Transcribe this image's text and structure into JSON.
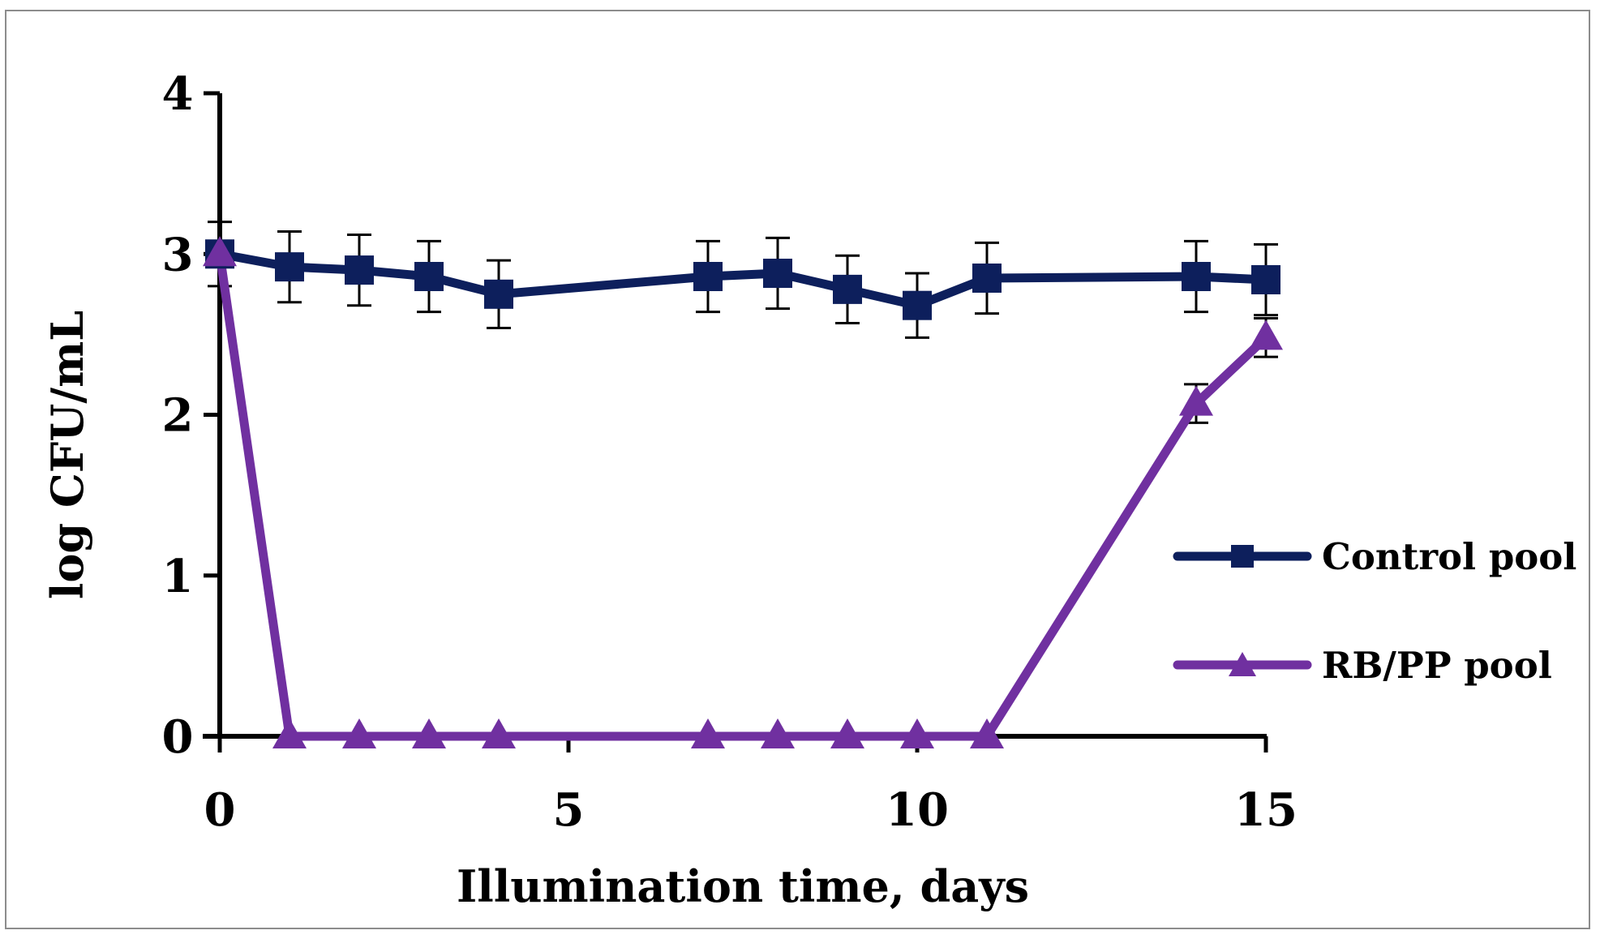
{
  "chart_data": {
    "type": "line",
    "title": "",
    "xlabel": "Illumination time, days",
    "ylabel": "log CFU/mL",
    "xlim": [
      0,
      15
    ],
    "ylim": [
      0,
      4
    ],
    "xticks": [
      "0",
      "5",
      "10",
      "15"
    ],
    "yticks": [
      "0",
      "1",
      "2",
      "3",
      "4"
    ],
    "grid": false,
    "legend_position": "right",
    "series": [
      {
        "name": "Control pool",
        "marker": "square",
        "color": "#0d1f5c",
        "x": [
          0,
          1,
          2,
          3,
          4,
          7,
          8,
          9,
          10,
          11,
          14,
          15
        ],
        "y": [
          3.0,
          2.92,
          2.9,
          2.86,
          2.75,
          2.86,
          2.88,
          2.78,
          2.68,
          2.85,
          2.86,
          2.84
        ],
        "error": [
          0.2,
          0.22,
          0.22,
          0.22,
          0.21,
          0.22,
          0.22,
          0.21,
          0.2,
          0.22,
          0.22,
          0.22
        ]
      },
      {
        "name": "RB/PP pool",
        "marker": "triangle",
        "color": "#7030a0",
        "x": [
          0,
          1,
          2,
          3,
          4,
          7,
          8,
          9,
          10,
          11,
          14,
          15
        ],
        "y": [
          3.0,
          0,
          0,
          0,
          0,
          0,
          0,
          0,
          0,
          0,
          2.07,
          2.48
        ],
        "error": [
          0,
          0,
          0,
          0,
          0,
          0,
          0,
          0,
          0,
          0,
          0.12,
          0.12
        ]
      }
    ]
  }
}
